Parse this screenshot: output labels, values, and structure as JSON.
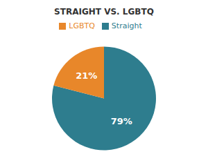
{
  "chart_data": {
    "type": "pie",
    "title": "STRAIGHT VS. LGBTQ",
    "categories": [
      "Straight",
      "LGBTQ"
    ],
    "values": [
      79,
      21
    ],
    "value_labels": [
      "79%",
      "21%"
    ],
    "colors": [
      "#2e7d8e",
      "#e8872a"
    ],
    "data_labels": true,
    "legend": "top"
  }
}
